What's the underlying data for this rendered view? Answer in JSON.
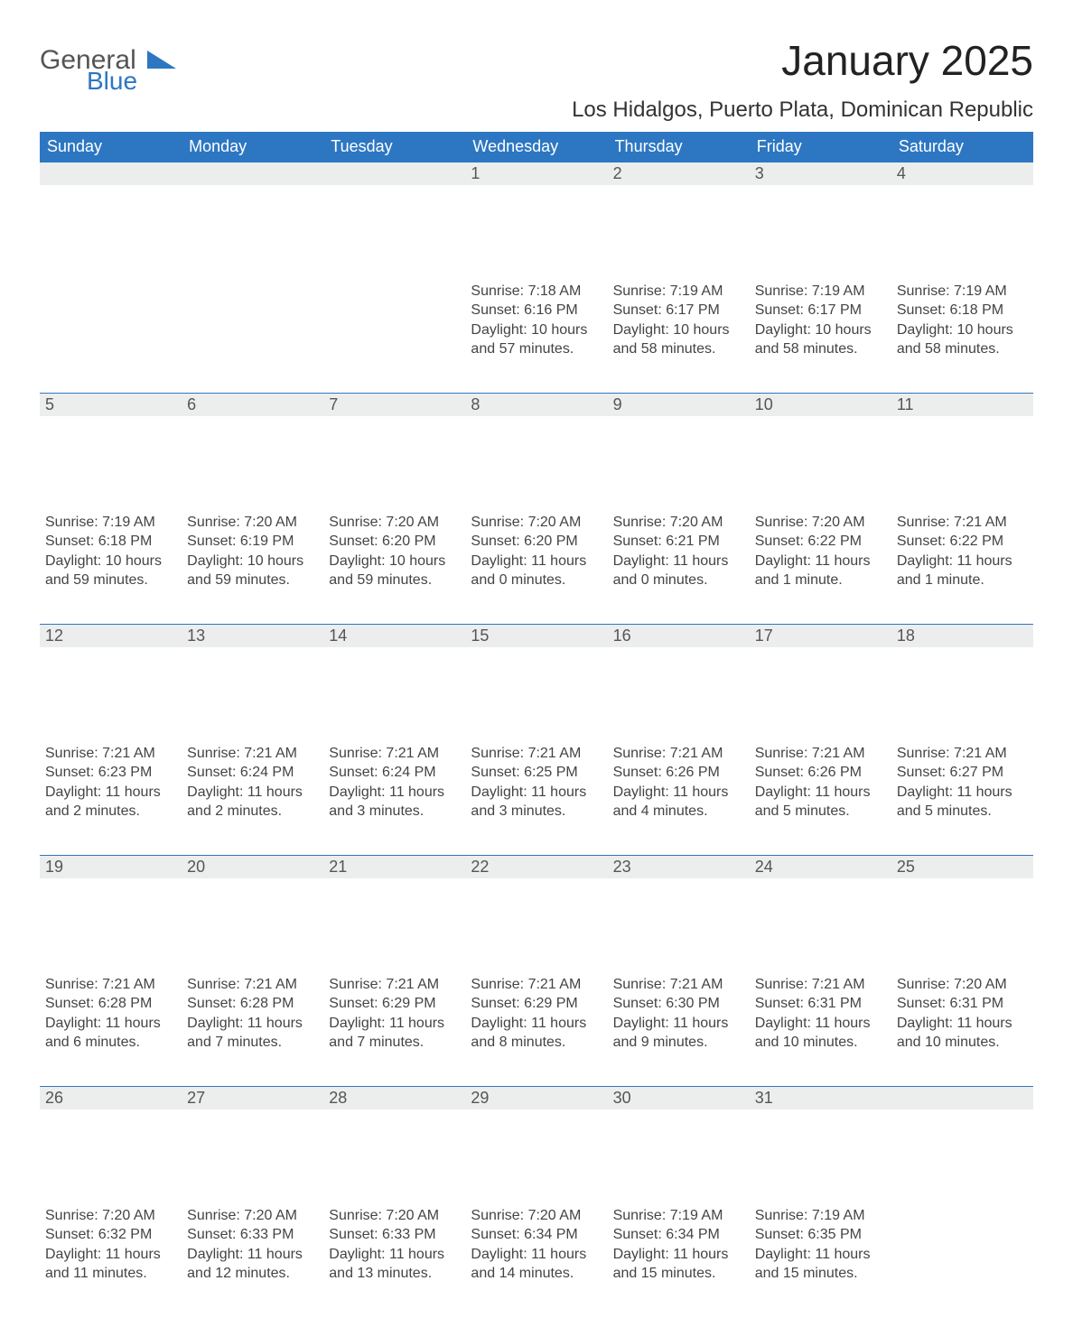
{
  "brand": {
    "part1": "General",
    "part2": "Blue",
    "triangle_color": "#2d77c2"
  },
  "title": "January 2025",
  "location": "Los Hidalgos, Puerto Plata, Dominican Republic",
  "colors": {
    "header_bg": "#2d77c2",
    "header_text": "#ffffff",
    "daynum_bg": "#eceded",
    "row_divider": "#2d77c2",
    "body_text": "#444444"
  },
  "day_headers": [
    "Sunday",
    "Monday",
    "Tuesday",
    "Wednesday",
    "Thursday",
    "Friday",
    "Saturday"
  ],
  "weeks": [
    [
      null,
      null,
      null,
      {
        "n": "1",
        "sr": "Sunrise: 7:18 AM",
        "ss": "Sunset: 6:16 PM",
        "dl": "Daylight: 10 hours and 57 minutes."
      },
      {
        "n": "2",
        "sr": "Sunrise: 7:19 AM",
        "ss": "Sunset: 6:17 PM",
        "dl": "Daylight: 10 hours and 58 minutes."
      },
      {
        "n": "3",
        "sr": "Sunrise: 7:19 AM",
        "ss": "Sunset: 6:17 PM",
        "dl": "Daylight: 10 hours and 58 minutes."
      },
      {
        "n": "4",
        "sr": "Sunrise: 7:19 AM",
        "ss": "Sunset: 6:18 PM",
        "dl": "Daylight: 10 hours and 58 minutes."
      }
    ],
    [
      {
        "n": "5",
        "sr": "Sunrise: 7:19 AM",
        "ss": "Sunset: 6:18 PM",
        "dl": "Daylight: 10 hours and 59 minutes."
      },
      {
        "n": "6",
        "sr": "Sunrise: 7:20 AM",
        "ss": "Sunset: 6:19 PM",
        "dl": "Daylight: 10 hours and 59 minutes."
      },
      {
        "n": "7",
        "sr": "Sunrise: 7:20 AM",
        "ss": "Sunset: 6:20 PM",
        "dl": "Daylight: 10 hours and 59 minutes."
      },
      {
        "n": "8",
        "sr": "Sunrise: 7:20 AM",
        "ss": "Sunset: 6:20 PM",
        "dl": "Daylight: 11 hours and 0 minutes."
      },
      {
        "n": "9",
        "sr": "Sunrise: 7:20 AM",
        "ss": "Sunset: 6:21 PM",
        "dl": "Daylight: 11 hours and 0 minutes."
      },
      {
        "n": "10",
        "sr": "Sunrise: 7:20 AM",
        "ss": "Sunset: 6:22 PM",
        "dl": "Daylight: 11 hours and 1 minute."
      },
      {
        "n": "11",
        "sr": "Sunrise: 7:21 AM",
        "ss": "Sunset: 6:22 PM",
        "dl": "Daylight: 11 hours and 1 minute."
      }
    ],
    [
      {
        "n": "12",
        "sr": "Sunrise: 7:21 AM",
        "ss": "Sunset: 6:23 PM",
        "dl": "Daylight: 11 hours and 2 minutes."
      },
      {
        "n": "13",
        "sr": "Sunrise: 7:21 AM",
        "ss": "Sunset: 6:24 PM",
        "dl": "Daylight: 11 hours and 2 minutes."
      },
      {
        "n": "14",
        "sr": "Sunrise: 7:21 AM",
        "ss": "Sunset: 6:24 PM",
        "dl": "Daylight: 11 hours and 3 minutes."
      },
      {
        "n": "15",
        "sr": "Sunrise: 7:21 AM",
        "ss": "Sunset: 6:25 PM",
        "dl": "Daylight: 11 hours and 3 minutes."
      },
      {
        "n": "16",
        "sr": "Sunrise: 7:21 AM",
        "ss": "Sunset: 6:26 PM",
        "dl": "Daylight: 11 hours and 4 minutes."
      },
      {
        "n": "17",
        "sr": "Sunrise: 7:21 AM",
        "ss": "Sunset: 6:26 PM",
        "dl": "Daylight: 11 hours and 5 minutes."
      },
      {
        "n": "18",
        "sr": "Sunrise: 7:21 AM",
        "ss": "Sunset: 6:27 PM",
        "dl": "Daylight: 11 hours and 5 minutes."
      }
    ],
    [
      {
        "n": "19",
        "sr": "Sunrise: 7:21 AM",
        "ss": "Sunset: 6:28 PM",
        "dl": "Daylight: 11 hours and 6 minutes."
      },
      {
        "n": "20",
        "sr": "Sunrise: 7:21 AM",
        "ss": "Sunset: 6:28 PM",
        "dl": "Daylight: 11 hours and 7 minutes."
      },
      {
        "n": "21",
        "sr": "Sunrise: 7:21 AM",
        "ss": "Sunset: 6:29 PM",
        "dl": "Daylight: 11 hours and 7 minutes."
      },
      {
        "n": "22",
        "sr": "Sunrise: 7:21 AM",
        "ss": "Sunset: 6:29 PM",
        "dl": "Daylight: 11 hours and 8 minutes."
      },
      {
        "n": "23",
        "sr": "Sunrise: 7:21 AM",
        "ss": "Sunset: 6:30 PM",
        "dl": "Daylight: 11 hours and 9 minutes."
      },
      {
        "n": "24",
        "sr": "Sunrise: 7:21 AM",
        "ss": "Sunset: 6:31 PM",
        "dl": "Daylight: 11 hours and 10 minutes."
      },
      {
        "n": "25",
        "sr": "Sunrise: 7:20 AM",
        "ss": "Sunset: 6:31 PM",
        "dl": "Daylight: 11 hours and 10 minutes."
      }
    ],
    [
      {
        "n": "26",
        "sr": "Sunrise: 7:20 AM",
        "ss": "Sunset: 6:32 PM",
        "dl": "Daylight: 11 hours and 11 minutes."
      },
      {
        "n": "27",
        "sr": "Sunrise: 7:20 AM",
        "ss": "Sunset: 6:33 PM",
        "dl": "Daylight: 11 hours and 12 minutes."
      },
      {
        "n": "28",
        "sr": "Sunrise: 7:20 AM",
        "ss": "Sunset: 6:33 PM",
        "dl": "Daylight: 11 hours and 13 minutes."
      },
      {
        "n": "29",
        "sr": "Sunrise: 7:20 AM",
        "ss": "Sunset: 6:34 PM",
        "dl": "Daylight: 11 hours and 14 minutes."
      },
      {
        "n": "30",
        "sr": "Sunrise: 7:19 AM",
        "ss": "Sunset: 6:34 PM",
        "dl": "Daylight: 11 hours and 15 minutes."
      },
      {
        "n": "31",
        "sr": "Sunrise: 7:19 AM",
        "ss": "Sunset: 6:35 PM",
        "dl": "Daylight: 11 hours and 15 minutes."
      },
      null
    ]
  ]
}
